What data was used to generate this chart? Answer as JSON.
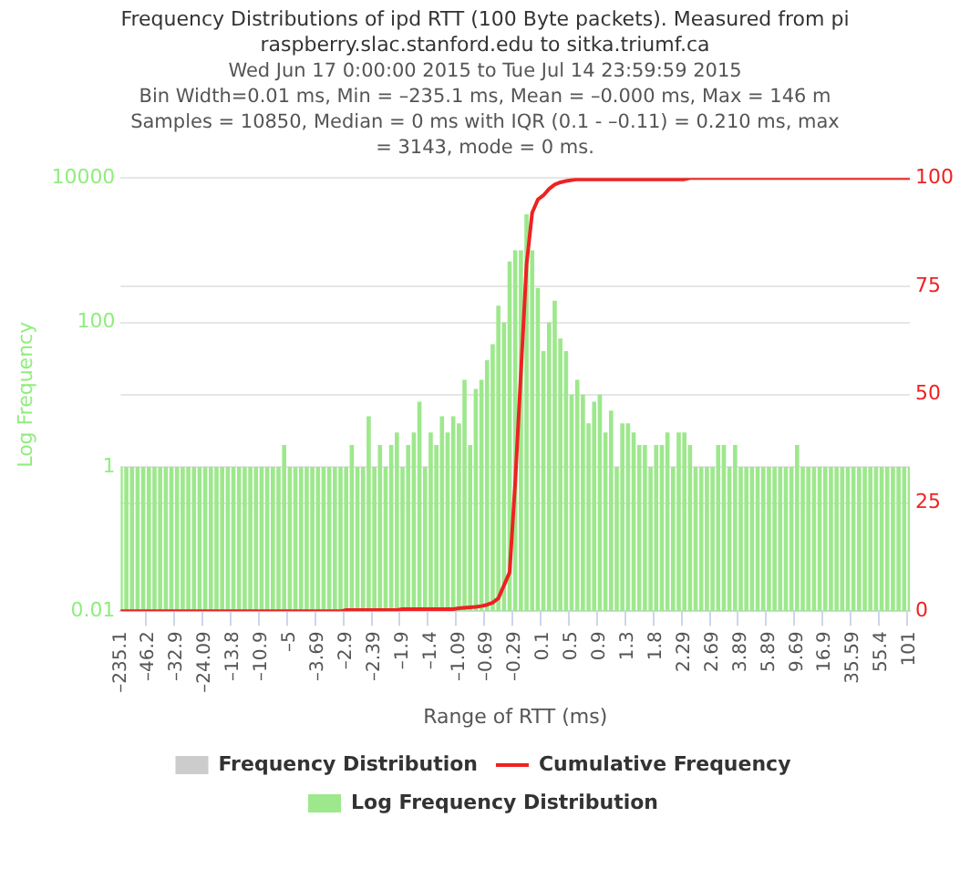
{
  "chart_data": {
    "type": "bar",
    "title": "Frequency Distributions of ipd RTT (100 Byte packets). Measured from pi\nraspberry.slac.stanford.edu to sitka.triumf.ca",
    "subtitle": "Wed Jun 17 0:00:00 2015 to Tue Jul 14 23:59:59 2015\nBin Width=0.01 ms, Min = –235.1 ms, Mean = –0.000 ms, Max = 146 m\nSamples = 10850, Median = 0 ms with IQR (0.1 - –0.11) = 0.210 ms, max\n= 3143, mode = 0 ms.",
    "xlabel": "Range of RTT (ms)",
    "ylabel": "Log Frequency",
    "categories": [
      "–235.1",
      null,
      null,
      null,
      null,
      "–46.2",
      null,
      null,
      null,
      null,
      "–32.9",
      null,
      null,
      null,
      null,
      "–24.09",
      null,
      null,
      null,
      null,
      "–13.8",
      null,
      null,
      null,
      null,
      "–10.9",
      null,
      null,
      null,
      null,
      "–5",
      null,
      null,
      null,
      null,
      "–3.69",
      null,
      null,
      null,
      null,
      "–2.9",
      null,
      null,
      null,
      null,
      "–2.39",
      null,
      null,
      null,
      null,
      "–1.9",
      null,
      null,
      null,
      null,
      "–1.4",
      null,
      null,
      null,
      null,
      "–1.09",
      null,
      null,
      null,
      null,
      "–0.69",
      null,
      null,
      null,
      null,
      "–0.29",
      null,
      null,
      null,
      null,
      "0.1",
      null,
      null,
      null,
      null,
      "0.5",
      null,
      null,
      null,
      null,
      "0.9",
      null,
      null,
      null,
      null,
      "1.3",
      null,
      null,
      null,
      null,
      "1.8",
      null,
      null,
      null,
      null,
      "2.29",
      null,
      null,
      null,
      null,
      "2.69",
      null,
      null,
      null,
      null,
      "3.89",
      null,
      null,
      null,
      null,
      "5.89",
      null,
      null,
      null,
      null,
      "9.69",
      null,
      null,
      null,
      null,
      "16.9",
      null,
      null,
      null,
      null,
      "35.59",
      null,
      null,
      null,
      null,
      "55.4",
      null,
      null,
      null,
      null,
      "101"
    ],
    "series": [
      {
        "name": "Frequency Distribution",
        "color": "#cccccc",
        "values": [
          null,
          null,
          null,
          null,
          null,
          null,
          null,
          null,
          null,
          null,
          null,
          null,
          null,
          null,
          null,
          null,
          null,
          null,
          null,
          null,
          null,
          null,
          null,
          null,
          null,
          null,
          null,
          null,
          null,
          null,
          null,
          null,
          null,
          null,
          null,
          null,
          null,
          null,
          null,
          null,
          null,
          null,
          null,
          null,
          null,
          null,
          null,
          null,
          null,
          null,
          null,
          null,
          null,
          null,
          null,
          null,
          null,
          null,
          null,
          null,
          null,
          null,
          null,
          null,
          null,
          null,
          null,
          null,
          null,
          null,
          null,
          null,
          null,
          null,
          null,
          null,
          null,
          null,
          null,
          null,
          null,
          null,
          null,
          null,
          null,
          null,
          null,
          null,
          null,
          null,
          null,
          null,
          null,
          null,
          null,
          null,
          null,
          null,
          null,
          null,
          null,
          null,
          null,
          null,
          null,
          null,
          null,
          null,
          null,
          null,
          null,
          null,
          null,
          null,
          null,
          null,
          null,
          null,
          null,
          null,
          null,
          null,
          null,
          null,
          null,
          null,
          null,
          null,
          null,
          null,
          null,
          null,
          null,
          null,
          null,
          null,
          null,
          null,
          null,
          null,
          null
        ]
      },
      {
        "name": "Cumulative Frequency",
        "type": "line",
        "axis": "y2",
        "color": "#ee2222",
        "values": [
          0,
          0,
          0,
          0,
          0,
          0,
          0,
          0,
          0,
          0,
          0,
          0,
          0,
          0,
          0,
          0,
          0,
          0,
          0,
          0,
          0,
          0,
          0,
          0,
          0,
          0,
          0,
          0,
          0,
          0,
          0,
          0,
          0,
          0,
          0,
          0,
          0,
          0,
          0,
          0,
          0.3,
          0.3,
          0.3,
          0.3,
          0.3,
          0.3,
          0.3,
          0.3,
          0.3,
          0.3,
          0.5,
          0.5,
          0.5,
          0.5,
          0.5,
          0.5,
          0.5,
          0.5,
          0.5,
          0.5,
          0.7,
          0.8,
          0.9,
          1,
          1.2,
          1.5,
          2,
          3,
          6,
          9,
          30,
          55,
          80,
          92,
          95,
          96,
          97.5,
          98.5,
          99,
          99.3,
          99.5,
          99.7,
          99.7,
          99.7,
          99.7,
          99.7,
          99.7,
          99.7,
          99.7,
          99.7,
          99.7,
          99.7,
          99.7,
          99.7,
          99.7,
          99.7,
          99.7,
          99.7,
          99.7,
          99.7,
          99.7,
          100,
          100,
          100,
          100,
          100,
          100,
          100,
          100,
          100,
          100,
          100,
          100,
          100,
          100,
          100,
          100,
          100,
          100,
          100,
          100,
          100,
          100,
          100,
          100,
          100,
          100,
          100,
          100,
          100,
          100,
          100,
          100,
          100,
          100,
          100,
          100,
          100,
          100,
          100,
          100
        ]
      },
      {
        "name": "Log Frequency Distribution",
        "color": "#9de88c",
        "values": [
          1,
          1,
          1,
          1,
          1,
          1,
          1,
          1,
          1,
          1,
          1,
          1,
          1,
          1,
          1,
          1,
          1,
          1,
          1,
          1,
          1,
          1,
          1,
          1,
          1,
          1,
          1,
          1,
          1,
          2,
          1,
          1,
          1,
          1,
          1,
          1,
          1,
          1,
          1,
          1,
          1,
          2,
          1,
          1,
          5,
          1,
          2,
          1,
          2,
          3,
          1,
          2,
          3,
          8,
          1,
          3,
          2,
          5,
          3,
          5,
          4,
          16,
          2,
          12,
          16,
          30,
          50,
          170,
          100,
          700,
          1000,
          1000,
          3143,
          1000,
          300,
          40,
          100,
          200,
          60,
          40,
          10,
          16,
          10,
          4,
          8,
          10,
          3,
          6,
          1,
          4,
          4,
          3,
          2,
          2,
          1,
          2,
          2,
          3,
          1,
          3,
          3,
          2,
          1,
          1,
          1,
          1,
          2,
          2,
          1,
          2,
          1,
          1,
          1,
          1,
          1,
          1,
          1,
          1,
          1,
          1,
          2,
          1,
          1,
          1,
          1,
          1,
          1,
          1,
          1,
          1,
          1,
          1,
          1,
          1,
          1,
          1,
          1,
          1,
          1,
          1,
          1
        ]
      }
    ],
    "log": "y",
    "ylim": [
      0.01,
      10000
    ],
    "yticks": [
      0.01,
      1,
      100,
      10000
    ],
    "y2lim": [
      0,
      100
    ],
    "y2ticks": [
      0,
      25,
      50,
      75,
      100
    ],
    "grid": "y",
    "legend": "bottom",
    "marker": "none",
    "line_style": "solid"
  }
}
